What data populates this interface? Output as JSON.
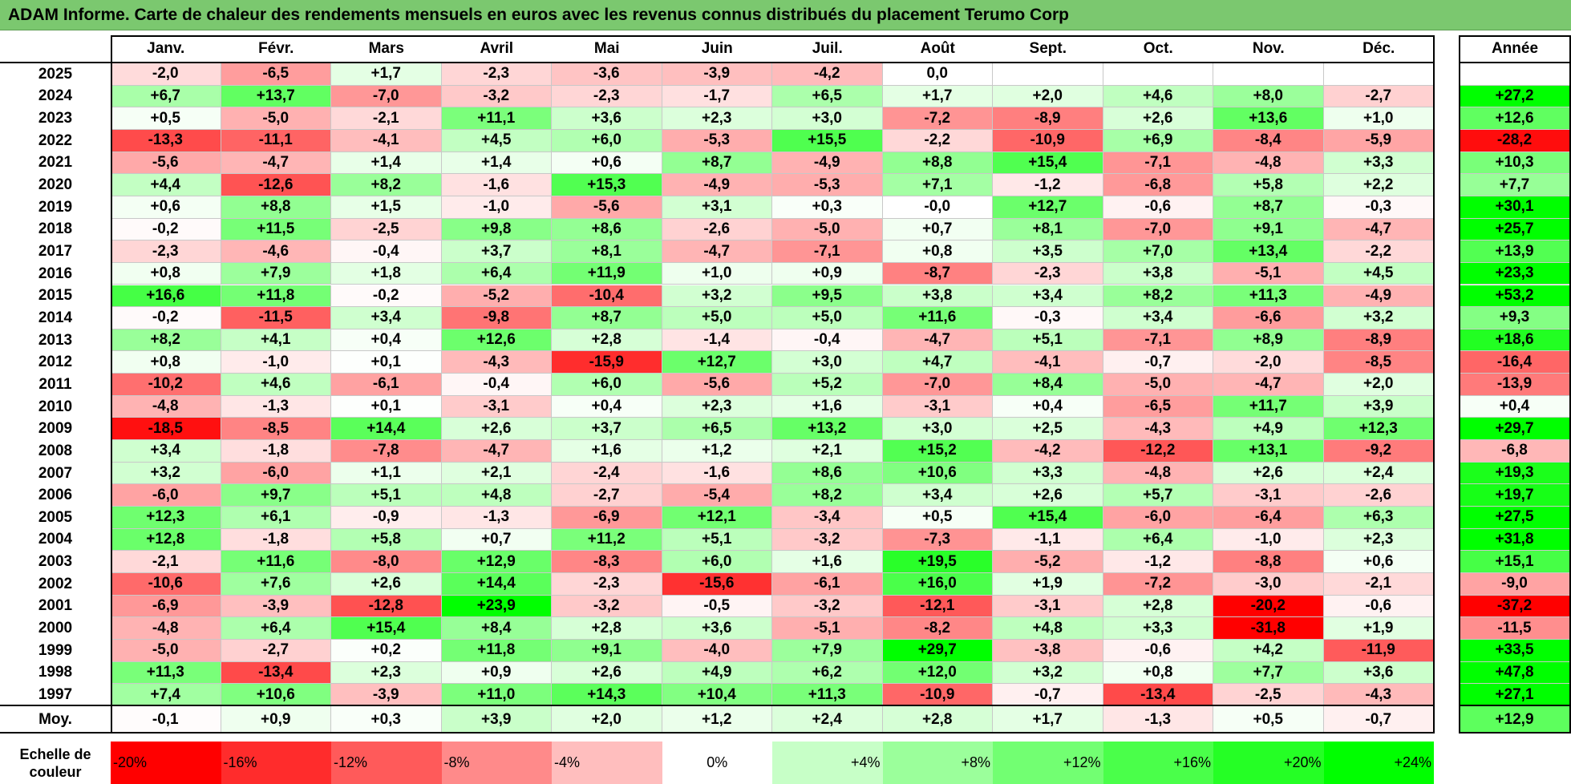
{
  "title": "ADAM Informe. Carte de chaleur des rendements mensuels en euros avec les revenus connus distribués du placement Terumo Corp",
  "chart_data": {
    "type": "heatmap",
    "title": "ADAM Informe. Carte de chaleur des rendements mensuels en euros avec les revenus connus distribués du placement Terumo Corp",
    "columns": [
      "Janv.",
      "Févr.",
      "Mars",
      "Avril",
      "Mai",
      "Juin",
      "Juil.",
      "Août",
      "Sept.",
      "Oct.",
      "Nov.",
      "Déc."
    ],
    "annual_header": "Année",
    "rows": [
      {
        "year": "2025",
        "values": [
          "-2,0",
          "-6,5",
          "+1,7",
          "-2,3",
          "-3,6",
          "-3,9",
          "-4,2",
          "0,0",
          "",
          "",
          "",
          ""
        ],
        "annual": ""
      },
      {
        "year": "2024",
        "values": [
          "+6,7",
          "+13,7",
          "-7,0",
          "-3,2",
          "-2,3",
          "-1,7",
          "+6,5",
          "+1,7",
          "+2,0",
          "+4,6",
          "+8,0",
          "-2,7"
        ],
        "annual": "+27,2"
      },
      {
        "year": "2023",
        "values": [
          "+0,5",
          "-5,0",
          "-2,1",
          "+11,1",
          "+3,6",
          "+2,3",
          "+3,0",
          "-7,2",
          "-8,9",
          "+2,6",
          "+13,6",
          "+1,0"
        ],
        "annual": "+12,6"
      },
      {
        "year": "2022",
        "values": [
          "-13,3",
          "-11,1",
          "-4,1",
          "+4,5",
          "+6,0",
          "-5,3",
          "+15,5",
          "-2,2",
          "-10,9",
          "+6,9",
          "-8,4",
          "-5,9"
        ],
        "annual": "-28,2"
      },
      {
        "year": "2021",
        "values": [
          "-5,6",
          "-4,7",
          "+1,4",
          "+1,4",
          "+0,6",
          "+8,7",
          "-4,9",
          "+8,8",
          "+15,4",
          "-7,1",
          "-4,8",
          "+3,3"
        ],
        "annual": "+10,3"
      },
      {
        "year": "2020",
        "values": [
          "+4,4",
          "-12,6",
          "+8,2",
          "-1,6",
          "+15,3",
          "-4,9",
          "-5,3",
          "+7,1",
          "-1,2",
          "-6,8",
          "+5,8",
          "+2,2"
        ],
        "annual": "+7,7"
      },
      {
        "year": "2019",
        "values": [
          "+0,6",
          "+8,8",
          "+1,5",
          "-1,0",
          "-5,6",
          "+3,1",
          "+0,3",
          "-0,0",
          "+12,7",
          "-0,6",
          "+8,7",
          "-0,3"
        ],
        "annual": "+30,1"
      },
      {
        "year": "2018",
        "values": [
          "-0,2",
          "+11,5",
          "-2,5",
          "+9,8",
          "+8,6",
          "-2,6",
          "-5,0",
          "+0,7",
          "+8,1",
          "-7,0",
          "+9,1",
          "-4,7"
        ],
        "annual": "+25,7"
      },
      {
        "year": "2017",
        "values": [
          "-2,3",
          "-4,6",
          "-0,4",
          "+3,7",
          "+8,1",
          "-4,7",
          "-7,1",
          "+0,8",
          "+3,5",
          "+7,0",
          "+13,4",
          "-2,2"
        ],
        "annual": "+13,9"
      },
      {
        "year": "2016",
        "values": [
          "+0,8",
          "+7,9",
          "+1,8",
          "+6,4",
          "+11,9",
          "+1,0",
          "+0,9",
          "-8,7",
          "-2,3",
          "+3,8",
          "-5,1",
          "+4,5"
        ],
        "annual": "+23,3"
      },
      {
        "year": "2015",
        "values": [
          "+16,6",
          "+11,8",
          "-0,2",
          "-5,2",
          "-10,4",
          "+3,2",
          "+9,5",
          "+3,8",
          "+3,4",
          "+8,2",
          "+11,3",
          "-4,9"
        ],
        "annual": "+53,2"
      },
      {
        "year": "2014",
        "values": [
          "-0,2",
          "-11,5",
          "+3,4",
          "-9,8",
          "+8,7",
          "+5,0",
          "+5,0",
          "+11,6",
          "-0,3",
          "+3,4",
          "-6,6",
          "+3,2"
        ],
        "annual": "+9,3"
      },
      {
        "year": "2013",
        "values": [
          "+8,2",
          "+4,1",
          "+0,4",
          "+12,6",
          "+2,8",
          "-1,4",
          "-0,4",
          "-4,7",
          "+5,1",
          "-7,1",
          "+8,9",
          "-8,9"
        ],
        "annual": "+18,6"
      },
      {
        "year": "2012",
        "values": [
          "+0,8",
          "-1,0",
          "+0,1",
          "-4,3",
          "-15,9",
          "+12,7",
          "+3,0",
          "+4,7",
          "-4,1",
          "-0,7",
          "-2,0",
          "-8,5"
        ],
        "annual": "-16,4"
      },
      {
        "year": "2011",
        "values": [
          "-10,2",
          "+4,6",
          "-6,1",
          "-0,4",
          "+6,0",
          "-5,6",
          "+5,2",
          "-7,0",
          "+8,4",
          "-5,0",
          "-4,7",
          "+2,0"
        ],
        "annual": "-13,9"
      },
      {
        "year": "2010",
        "values": [
          "-4,8",
          "-1,3",
          "+0,1",
          "-3,1",
          "+0,4",
          "+2,3",
          "+1,6",
          "-3,1",
          "+0,4",
          "-6,5",
          "+11,7",
          "+3,9"
        ],
        "annual": "+0,4"
      },
      {
        "year": "2009",
        "values": [
          "-18,5",
          "-8,5",
          "+14,4",
          "+2,6",
          "+3,7",
          "+6,5",
          "+13,2",
          "+3,0",
          "+2,5",
          "-4,3",
          "+4,9",
          "+12,3"
        ],
        "annual": "+29,7"
      },
      {
        "year": "2008",
        "values": [
          "+3,4",
          "-1,8",
          "-7,8",
          "-4,7",
          "+1,6",
          "+1,2",
          "+2,1",
          "+15,2",
          "-4,2",
          "-12,2",
          "+13,1",
          "-9,2"
        ],
        "annual": "-6,8"
      },
      {
        "year": "2007",
        "values": [
          "+3,2",
          "-6,0",
          "+1,1",
          "+2,1",
          "-2,4",
          "-1,6",
          "+8,6",
          "+10,6",
          "+3,3",
          "-4,8",
          "+2,6",
          "+2,4"
        ],
        "annual": "+19,3"
      },
      {
        "year": "2006",
        "values": [
          "-6,0",
          "+9,7",
          "+5,1",
          "+4,8",
          "-2,7",
          "-5,4",
          "+8,2",
          "+3,4",
          "+2,6",
          "+5,7",
          "-3,1",
          "-2,6"
        ],
        "annual": "+19,7"
      },
      {
        "year": "2005",
        "values": [
          "+12,3",
          "+6,1",
          "-0,9",
          "-1,3",
          "-6,9",
          "+12,1",
          "-3,4",
          "+0,5",
          "+15,4",
          "-6,0",
          "-6,4",
          "+6,3"
        ],
        "annual": "+27,5"
      },
      {
        "year": "2004",
        "values": [
          "+12,8",
          "-1,8",
          "+5,8",
          "+0,7",
          "+11,2",
          "+5,1",
          "-3,2",
          "-7,3",
          "-1,1",
          "+6,4",
          "-1,0",
          "+2,3"
        ],
        "annual": "+31,8"
      },
      {
        "year": "2003",
        "values": [
          "-2,1",
          "+11,6",
          "-8,0",
          "+12,9",
          "-8,3",
          "+6,0",
          "+1,6",
          "+19,5",
          "-5,2",
          "-1,2",
          "-8,8",
          "+0,6"
        ],
        "annual": "+15,1"
      },
      {
        "year": "2002",
        "values": [
          "-10,6",
          "+7,6",
          "+2,6",
          "+14,4",
          "-2,3",
          "-15,6",
          "-6,1",
          "+16,0",
          "+1,9",
          "-7,2",
          "-3,0",
          "-2,1"
        ],
        "annual": "-9,0"
      },
      {
        "year": "2001",
        "values": [
          "-6,9",
          "-3,9",
          "-12,8",
          "+23,9",
          "-3,2",
          "-0,5",
          "-3,2",
          "-12,1",
          "-3,1",
          "+2,8",
          "-20,2",
          "-0,6"
        ],
        "annual": "-37,2"
      },
      {
        "year": "2000",
        "values": [
          "-4,8",
          "+6,4",
          "+15,4",
          "+8,4",
          "+2,8",
          "+3,6",
          "-5,1",
          "-8,2",
          "+4,8",
          "+3,3",
          "-31,8",
          "+1,9"
        ],
        "annual": "-11,5"
      },
      {
        "year": "1999",
        "values": [
          "-5,0",
          "-2,7",
          "+0,2",
          "+11,8",
          "+9,1",
          "-4,0",
          "+7,9",
          "+29,7",
          "-3,8",
          "-0,6",
          "+4,2",
          "-11,9"
        ],
        "annual": "+33,5"
      },
      {
        "year": "1998",
        "values": [
          "+11,3",
          "-13,4",
          "+2,3",
          "+0,9",
          "+2,6",
          "+4,9",
          "+6,2",
          "+12,0",
          "+3,2",
          "+0,8",
          "+7,7",
          "+3,6"
        ],
        "annual": "+47,8"
      },
      {
        "year": "1997",
        "values": [
          "+7,4",
          "+10,6",
          "-3,9",
          "+11,0",
          "+14,3",
          "+10,4",
          "+11,3",
          "-10,9",
          "-0,7",
          "-13,4",
          "-2,5",
          "-4,3"
        ],
        "annual": "+27,1"
      }
    ],
    "average": {
      "label": "Moy.",
      "values": [
        "-0,1",
        "+0,9",
        "+0,3",
        "+3,9",
        "+2,0",
        "+1,2",
        "+2,4",
        "+2,8",
        "+1,7",
        "-1,3",
        "+0,5",
        "-0,7"
      ],
      "annual": "+12,9"
    },
    "scale": {
      "label": "Echelle de couleur",
      "steps": [
        "-20%",
        "-16%",
        "-12%",
        "-8%",
        "-4%",
        "0%",
        "+4%",
        "+8%",
        "+12%",
        "+16%",
        "+20%",
        "+24%"
      ],
      "step_values": [
        -20,
        -16,
        -12,
        -8,
        -4,
        0,
        4,
        8,
        12,
        16,
        20,
        24
      ]
    },
    "colors": {
      "negative": "#ff0000",
      "neutral": "#ffffff",
      "positive": "#00ff00",
      "title_bar": "#7bc86f"
    }
  }
}
